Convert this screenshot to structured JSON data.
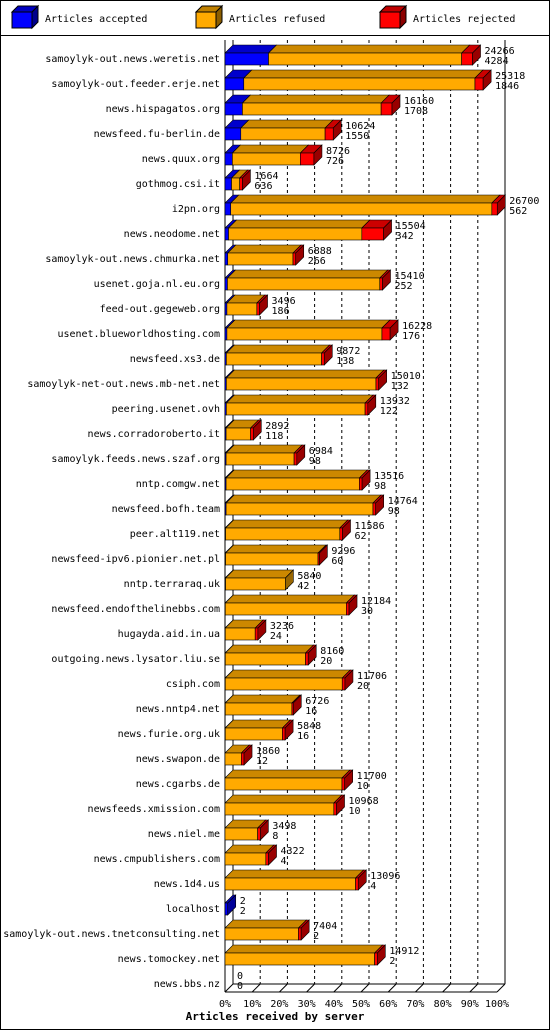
{
  "chart_data": {
    "type": "bar3d-horizontal-stacked",
    "x_label": "Articles received by server",
    "legend": "top",
    "categories": [
      "samoylyk-out.news.weretis.net",
      "samoylyk-out.feeder.erje.net",
      "news.hispagatos.org",
      "newsfeed.fu-berlin.de",
      "news.quux.org",
      "gothmog.csi.it",
      "i2pn.org",
      "news.neodome.net",
      "samoylyk-out.news.chmurka.net",
      "usenet.goja.nl.eu.org",
      "feed-out.gegeweb.org",
      "usenet.blueworldhosting.com",
      "newsfeed.xs3.de",
      "samoylyk-net-out.news.mb-net.net",
      "peering.usenet.ovh",
      "news.corradoroberto.it",
      "samoylyk.feeds.news.szaf.org",
      "nntp.comgw.net",
      "newsfeed.bofh.team",
      "peer.alt119.net",
      "newsfeed-ipv6.pionier.net.pl",
      "nntp.terraraq.uk",
      "newsfeed.endofthelinebbs.com",
      "hugayda.aid.in.ua",
      "outgoing.news.lysator.liu.se",
      "csiph.com",
      "news.nntp4.net",
      "news.furie.org.uk",
      "news.swapon.de",
      "news.cgarbs.de",
      "newsfeeds.xmission.com",
      "news.niel.me",
      "news.cmpublishers.com",
      "news.1d4.us",
      "localhost",
      "samoylyk-out.news.tnetconsulting.net",
      "news.tomockey.net",
      "news.bbs.nz"
    ],
    "series": [
      {
        "name": "Articles accepted",
        "color": "#0000ff",
        "values": [
          16,
          6.9,
          6.4,
          5.8,
          2.7,
          2.4,
          2.1,
          1.3,
          1,
          0.9,
          0.7,
          0.7,
          0.5,
          0.5,
          0.5,
          0.4,
          0.4,
          0.4,
          0.4,
          0.2,
          0.2,
          0.2,
          0.1,
          0.1,
          0.1,
          0.1,
          0.1,
          0.1,
          0,
          0,
          0,
          0,
          0,
          0,
          1,
          0,
          0,
          0
        ]
      },
      {
        "name": "Articles refused",
        "color": "#ffaa00",
        "values": [
          71,
          85,
          51,
          31,
          25,
          3,
          96,
          49,
          24,
          56,
          11,
          57,
          35,
          55,
          51,
          9,
          25,
          49,
          54,
          42,
          34,
          22,
          44.5,
          11,
          29.5,
          43,
          24.5,
          21,
          6,
          43,
          40,
          12,
          15,
          48,
          0,
          27,
          55,
          0
        ]
      },
      {
        "name": "Articles rejected",
        "color": "#ff0000",
        "values": [
          4,
          3,
          4,
          3,
          5,
          1,
          2,
          8,
          1,
          1,
          1,
          3,
          1,
          1,
          1,
          1,
          1,
          1,
          1,
          1,
          0.5,
          0,
          1,
          1,
          1,
          1,
          0.5,
          1,
          1,
          1,
          1,
          1,
          1,
          1,
          0,
          1,
          1,
          0
        ]
      }
    ],
    "offered": [
      24266,
      25318,
      16160,
      10624,
      8726,
      1664,
      26700,
      15504,
      6888,
      15410,
      3496,
      16228,
      9872,
      15010,
      13932,
      2892,
      6984,
      13516,
      14764,
      11586,
      9296,
      5840,
      12184,
      3236,
      8160,
      11706,
      6726,
      5848,
      1860,
      11700,
      10968,
      3498,
      4322,
      13096,
      2,
      7404,
      14912,
      0
    ],
    "accepted": [
      4284,
      1846,
      1708,
      1550,
      726,
      636,
      562,
      342,
      266,
      252,
      186,
      176,
      138,
      132,
      122,
      118,
      98,
      98,
      98,
      62,
      60,
      42,
      30,
      24,
      20,
      20,
      16,
      16,
      12,
      10,
      10,
      8,
      4,
      4,
      2,
      2,
      2,
      0
    ],
    "xlim": [
      0,
      100
    ],
    "xticks": [
      {
        "value": 0,
        "label": "0%"
      },
      {
        "value": 10,
        "label": "10%"
      },
      {
        "value": 20,
        "label": "20%"
      },
      {
        "value": 30,
        "label": "30%"
      },
      {
        "value": 40,
        "label": "40%"
      },
      {
        "value": 50,
        "label": "50%"
      },
      {
        "value": 60,
        "label": "60%"
      },
      {
        "value": 70,
        "label": "70%"
      },
      {
        "value": 80,
        "label": "80%"
      },
      {
        "value": 90,
        "label": "90%"
      },
      {
        "value": 100,
        "label": "100%"
      }
    ],
    "grid": true
  }
}
